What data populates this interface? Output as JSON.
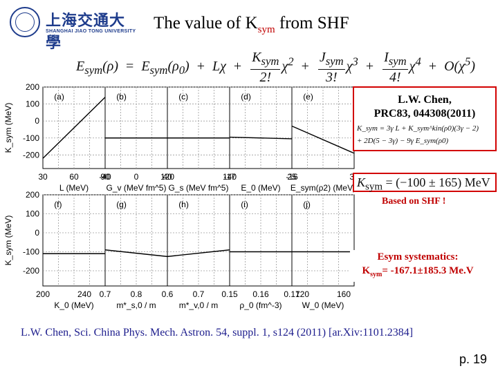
{
  "slide": {
    "title_prefix": "The value of K",
    "title_sub": "sym",
    "title_suffix": " from SHF",
    "formula": {
      "lhs": "E",
      "lhs_sub": "sym",
      "lhs_arg": "(ρ)",
      "equals": "=",
      "e0": "E",
      "e0_sub": "sym",
      "e0_arg": "(ρ",
      "e0_arg_sub": "0",
      "e0_close": ")",
      "plus": "+",
      "l_term": "Lχ",
      "k_num": "K",
      "k_num_sub": "sym",
      "k_den": "2!",
      "k_term": "χ",
      "k_exp": "2",
      "j_num": "J",
      "j_num_sub": "sym",
      "j_den": "3!",
      "j_term": "χ",
      "j_exp": "3",
      "i_num": "I",
      "i_num_sub": "sym",
      "i_den": "4!",
      "i_term": "χ",
      "i_exp": "4",
      "o_term": "O(χ",
      "o_exp": "5",
      "o_close": ")"
    },
    "ref_box": {
      "line1": "L.W. Chen,",
      "line2": "PRC83, 044308(2011)",
      "eq1": "K_sym = 3γ L + K_sym^kin(ρ0)(3γ − 2)",
      "eq2": "+ 2D(5 − 3γ) − 9γ E_sym(ρ0)"
    },
    "result_box": {
      "text": "K",
      "text_sub": "sym",
      "value": " = (−100 ± 165) MeV"
    },
    "based_label": "Based on SHF !",
    "systematics": {
      "line1": "Esym systematics:",
      "k": "K",
      "k_sub": "sym",
      "value": "= -167.1±185.3 Me.V"
    },
    "citation": "L.W. Chen, Sci. China Phys. Mech. Astron. 54, suppl. 1, s124 (2011) [ar.Xiv:1101.2384]",
    "page_number": "p. 19",
    "logo": {
      "cn": "上海交通大學",
      "en": "SHANGHAI JIAO TONG UNIVERSITY"
    }
  },
  "colors": {
    "title_accent": "#c00000",
    "box_border": "#d20000",
    "citation": "#1c1c8c",
    "logo": "#1e3c8c"
  },
  "chart_data": [
    {
      "type": "line",
      "row": "top",
      "y_label": "K_sym (MeV)",
      "ylim": [
        -280,
        200
      ],
      "y_ticks": [
        "200",
        "100",
        "0",
        "-100",
        "-200"
      ],
      "y_tick_values": [
        200,
        100,
        0,
        -100,
        -200
      ],
      "panels": [
        {
          "label": "(a)",
          "xlabel": "L (MeV)",
          "xlim": [
            30,
            90
          ],
          "x_ticks": [
            "30",
            "60",
            "90"
          ],
          "x_tick_values": [
            30,
            60,
            90
          ],
          "series": [
            {
              "x": [
                30,
                90
              ],
              "y": [
                -220,
                140
              ]
            }
          ]
        },
        {
          "label": "(b)",
          "xlabel": "G_v (MeV fm^5)",
          "xlim": [
            -40,
            40
          ],
          "x_ticks": [
            "-40",
            "0",
            "40"
          ],
          "x_tick_values": [
            -40,
            0,
            40
          ],
          "series": [
            {
              "x": [
                -40,
                40
              ],
              "y": [
                -100,
                -100
              ]
            }
          ]
        },
        {
          "label": "(c)",
          "xlabel": "G_s (MeV fm^5)",
          "xlim": [
            120,
            140
          ],
          "x_ticks": [
            "120",
            "140"
          ],
          "x_tick_values": [
            120,
            140
          ],
          "series": [
            {
              "x": [
                120,
                140
              ],
              "y": [
                -100,
                -100
              ]
            }
          ]
        },
        {
          "label": "(d)",
          "xlabel": "E_0 (MeV)",
          "xlim": [
            -17,
            -16
          ],
          "x_ticks": [
            "-17",
            "-16"
          ],
          "x_tick_values": [
            -17,
            -16
          ],
          "series": [
            {
              "x": [
                -17,
                -16
              ],
              "y": [
                -95,
                -105
              ]
            }
          ]
        },
        {
          "label": "(e)",
          "xlabel": "E_sym(ρ2) (MeV)",
          "xlim": [
            25,
            35
          ],
          "x_ticks": [
            "25",
            "35"
          ],
          "x_tick_values": [
            25,
            35
          ],
          "series": [
            {
              "x": [
                25,
                35
              ],
              "y": [
                -30,
                -190
              ]
            }
          ]
        }
      ]
    },
    {
      "type": "line",
      "row": "bottom",
      "y_label": "K_sym (MeV)",
      "ylim": [
        -280,
        200
      ],
      "y_ticks": [
        "200",
        "100",
        "0",
        "-100",
        "-200"
      ],
      "y_tick_values": [
        200,
        100,
        0,
        -100,
        -200
      ],
      "panels": [
        {
          "label": "(f)",
          "xlabel": "K_0 (MeV)",
          "xlim": [
            200,
            260
          ],
          "x_ticks": [
            "200",
            "240"
          ],
          "x_tick_values": [
            200,
            240
          ],
          "series": [
            {
              "x": [
                200,
                260
              ],
              "y": [
                -110,
                -110
              ]
            }
          ]
        },
        {
          "label": "(g)",
          "xlabel": "m*_s,0 / m",
          "xlim": [
            0.7,
            0.9
          ],
          "x_ticks": [
            "0.7",
            "0.8"
          ],
          "x_tick_values": [
            0.7,
            0.8
          ],
          "series": [
            {
              "x": [
                0.7,
                0.9
              ],
              "y": [
                -90,
                -125
              ]
            }
          ]
        },
        {
          "label": "(h)",
          "xlabel": "m*_v,0 / m",
          "xlim": [
            0.6,
            0.8
          ],
          "x_ticks": [
            "0.6",
            "0.7"
          ],
          "x_tick_values": [
            0.6,
            0.7
          ],
          "series": [
            {
              "x": [
                0.6,
                0.8
              ],
              "y": [
                -125,
                -90
              ]
            }
          ]
        },
        {
          "label": "(i)",
          "xlabel": "ρ_0 (fm^-3)",
          "xlim": [
            0.15,
            0.17
          ],
          "x_ticks": [
            "0.15",
            "0.16",
            "0.17"
          ],
          "x_tick_values": [
            0.15,
            0.16,
            0.17
          ],
          "series": [
            {
              "x": [
                0.15,
                0.17
              ],
              "y": [
                -100,
                -100
              ]
            }
          ]
        },
        {
          "label": "(j)",
          "xlabel": "W_0 (MeV)",
          "xlim": [
            110,
            170
          ],
          "x_ticks": [
            "120",
            "160"
          ],
          "x_tick_values": [
            120,
            160
          ],
          "series": [
            {
              "x": [
                110,
                170
              ],
              "y": [
                -100,
                -100
              ]
            }
          ]
        }
      ]
    }
  ]
}
